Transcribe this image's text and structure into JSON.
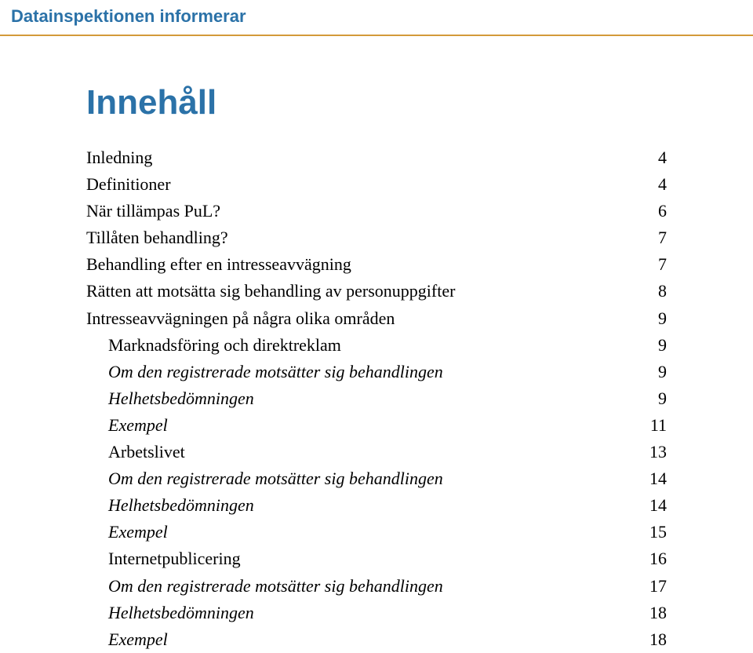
{
  "colors": {
    "header_text": "#2b72a8",
    "header_rule": "#d39a3a",
    "title_text": "#2b72a8",
    "body_text": "#000000",
    "background": "#ffffff"
  },
  "header": {
    "label": "Datainspektionen informerar"
  },
  "title": "Innehåll",
  "toc": [
    {
      "label": "Inledning",
      "page": "4",
      "indent": 0,
      "italic": false
    },
    {
      "label": "Definitioner",
      "page": "4",
      "indent": 0,
      "italic": false
    },
    {
      "label": "När tillämpas PuL?",
      "page": "6",
      "indent": 0,
      "italic": false
    },
    {
      "label": "Tillåten behandling?",
      "page": "7",
      "indent": 0,
      "italic": false
    },
    {
      "label": "Behandling efter en intresseavvägning",
      "page": "7",
      "indent": 0,
      "italic": false
    },
    {
      "label": "Rätten att motsätta sig behandling av personuppgifter",
      "page": "8",
      "indent": 0,
      "italic": false
    },
    {
      "label": "Intresseavvägningen på några olika områden",
      "page": "9",
      "indent": 0,
      "italic": false
    },
    {
      "label": "Marknadsföring och direktreklam",
      "page": "9",
      "indent": 1,
      "italic": false
    },
    {
      "label": "Om den registrerade motsätter sig behandlingen",
      "page": "9",
      "indent": 1,
      "italic": true
    },
    {
      "label": "Helhetsbedömningen",
      "page": "9",
      "indent": 1,
      "italic": true
    },
    {
      "label": "Exempel",
      "page": "11",
      "indent": 1,
      "italic": true
    },
    {
      "label": "Arbetslivet",
      "page": "13",
      "indent": 1,
      "italic": false
    },
    {
      "label": "Om den registrerade motsätter sig behandlingen",
      "page": "14",
      "indent": 1,
      "italic": true
    },
    {
      "label": "Helhetsbedömningen",
      "page": "14",
      "indent": 1,
      "italic": true
    },
    {
      "label": "Exempel",
      "page": "15",
      "indent": 1,
      "italic": true
    },
    {
      "label": "Internetpublicering",
      "page": "16",
      "indent": 1,
      "italic": false
    },
    {
      "label": "Om den registrerade motsätter sig behandlingen",
      "page": "17",
      "indent": 1,
      "italic": true
    },
    {
      "label": "Helhetsbedömningen",
      "page": "18",
      "indent": 1,
      "italic": true
    },
    {
      "label": "Exempel",
      "page": "18",
      "indent": 1,
      "italic": true
    }
  ]
}
